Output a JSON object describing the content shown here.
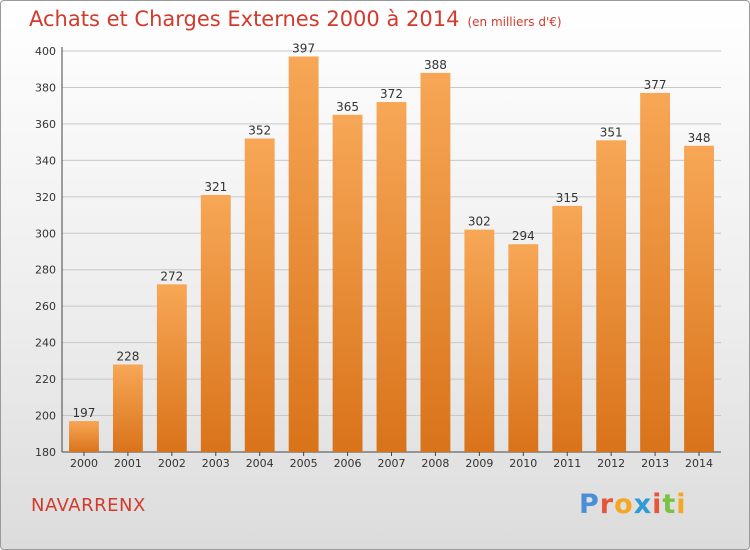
{
  "header": {
    "title": "Achats et Charges Externes 2000 à 2014",
    "unit": "(en milliers d'€)"
  },
  "footer": {
    "commune": "NAVARRENX",
    "logo": {
      "text": "Proxiti",
      "letter_colors": [
        "#4a8fd6",
        "#e8563a",
        "#f5a623",
        "#2e9ad6",
        "#e8563a",
        "#7cc242",
        "#f5a623"
      ]
    }
  },
  "colors": {
    "bar_light": "#f7a756",
    "bar_dark": "#d9731a",
    "grid": "#c8c8c8",
    "title": "#d23b2c"
  },
  "chart_data": {
    "type": "bar",
    "title": "Achats et Charges Externes 2000 à 2014",
    "subtitle": "(en milliers d'€)",
    "categories": [
      "2000",
      "2001",
      "2002",
      "2003",
      "2004",
      "2005",
      "2006",
      "2007",
      "2008",
      "2009",
      "2010",
      "2011",
      "2012",
      "2013",
      "2014"
    ],
    "values": [
      197,
      228,
      272,
      321,
      352,
      397,
      365,
      372,
      388,
      302,
      294,
      315,
      351,
      377,
      348
    ],
    "ylim": [
      180,
      400
    ],
    "yticks": [
      180,
      200,
      220,
      240,
      260,
      280,
      300,
      320,
      340,
      360,
      380,
      400
    ],
    "grid": "horizontal",
    "data_labels": true
  }
}
